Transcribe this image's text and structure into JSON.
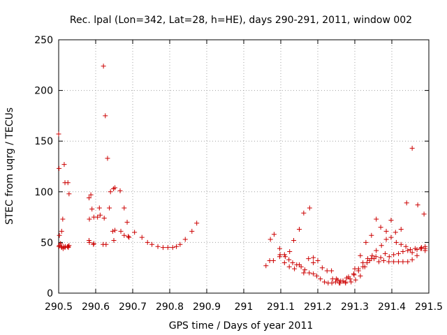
{
  "chart_data": {
    "type": "scatter",
    "title": "Rec. lpal (Lon=342, Lat=28, h=HE), days 290-291, 2011, window 002",
    "xlabel": "GPS time / Days of year 2011",
    "ylabel": "STEC from uqrg / TECUs",
    "xlim": [
      290.5,
      291.5
    ],
    "ylim": [
      0,
      250
    ],
    "xticks": [
      "290.5",
      "290.6",
      "290.7",
      "290.8",
      "290.9",
      "291",
      "291.1",
      "291.2",
      "291.3",
      "291.4",
      "291.5"
    ],
    "yticks": [
      "0",
      "50",
      "100",
      "150",
      "200",
      "250"
    ],
    "grid": true,
    "marker": "+",
    "color": "#cc0000",
    "series": [
      {
        "x": [
          290.5,
          290.501,
          290.502,
          290.505,
          290.508,
          290.511,
          290.515,
          290.517,
          290.525,
          290.528,
          290.501,
          290.508,
          290.512,
          290.517,
          290.526,
          290.528,
          290.502,
          290.508,
          290.513,
          290.518,
          290.524,
          290.526,
          290.582,
          290.587,
          290.59,
          290.595,
          290.605,
          290.612,
          290.621,
          290.626,
          290.632,
          290.64,
          290.648,
          290.583,
          290.61,
          290.623,
          290.637,
          290.652,
          290.666,
          290.677,
          290.685,
          290.582,
          290.595,
          290.62,
          290.628,
          290.646,
          290.652,
          290.668,
          290.677,
          290.688,
          290.583,
          290.594,
          290.649,
          290.69,
          290.705,
          290.725,
          290.74,
          290.752,
          290.768,
          290.782,
          290.795,
          290.808,
          290.818,
          290.828,
          290.842,
          290.86,
          290.873,
          291.06,
          291.072,
          291.082,
          291.097,
          291.11,
          291.122,
          291.132,
          291.143,
          291.155,
          291.165,
          291.177,
          291.188,
          291.197,
          291.207,
          291.218,
          291.228,
          291.238,
          291.248,
          291.258,
          291.268,
          291.278,
          291.07,
          291.08,
          291.098,
          291.112,
          291.124,
          291.135,
          291.15,
          291.162,
          291.178,
          291.188,
          291.097,
          291.11,
          291.123,
          291.137,
          291.15,
          291.162,
          291.175,
          291.188,
          291.2,
          291.212,
          291.225,
          291.237,
          291.25,
          291.262,
          291.275,
          291.287,
          291.298,
          291.31,
          291.322,
          291.333,
          291.345,
          291.357,
          291.37,
          291.382,
          291.393,
          291.405,
          291.418,
          291.43,
          291.443,
          291.455,
          291.468,
          291.48,
          291.49,
          291.24,
          291.254,
          291.268,
          291.283,
          291.297,
          291.31,
          291.322,
          291.335,
          291.347,
          291.358,
          291.372,
          291.385,
          291.398,
          291.412,
          291.425,
          291.438,
          291.45,
          291.463,
          291.478,
          291.49,
          291.26,
          291.275,
          291.29,
          291.302,
          291.315,
          291.327,
          291.34,
          291.352,
          291.365,
          291.378,
          291.392,
          291.405,
          291.418,
          291.43,
          291.443,
          291.455,
          291.468,
          291.48,
          291.49,
          291.3,
          291.315,
          291.33,
          291.345,
          291.358,
          291.37,
          291.385,
          291.398,
          291.41,
          291.425,
          291.44,
          291.455,
          291.47,
          291.487
        ],
        "y": [
          157,
          123,
          57,
          49,
          61,
          73,
          127,
          109,
          109,
          98,
          46,
          45,
          44,
          45,
          46,
          47,
          47,
          46,
          46,
          46,
          46,
          45,
          94,
          97,
          83,
          75,
          75,
          77,
          224,
          175,
          133,
          100,
          103,
          73,
          84,
          74,
          84,
          104,
          101,
          84,
          70,
          52,
          49,
          48,
          48,
          61,
          62,
          61,
          57,
          56,
          50,
          48,
          52,
          55,
          60,
          55,
          50,
          48,
          46,
          45,
          45,
          45,
          46,
          48,
          53,
          61,
          69,
          27,
          53,
          58,
          44,
          38,
          33,
          30,
          28,
          26,
          23,
          20,
          19,
          17,
          14,
          11,
          10,
          10,
          11,
          10,
          12,
          15,
          32,
          32,
          38,
          36,
          41,
          52,
          63,
          79,
          84,
          30,
          36,
          30,
          26,
          24,
          28,
          20,
          34,
          35,
          32,
          25,
          22,
          22,
          14,
          12,
          11,
          14,
          18,
          22,
          26,
          30,
          34,
          36,
          35,
          39,
          36,
          38,
          39,
          41,
          42,
          40,
          43,
          45,
          44,
          14,
          13,
          12,
          16,
          19,
          24,
          30,
          34,
          37,
          42,
          47,
          53,
          55,
          50,
          48,
          46,
          43,
          44,
          44,
          42,
          10,
          10,
          11,
          13,
          17,
          26,
          32,
          34,
          31,
          32,
          31,
          31,
          31,
          31,
          31,
          33,
          37,
          44,
          46,
          24,
          37,
          50,
          57,
          73,
          65,
          61,
          72,
          60,
          63,
          89,
          143,
          87,
          78
        ]
      }
    ]
  }
}
